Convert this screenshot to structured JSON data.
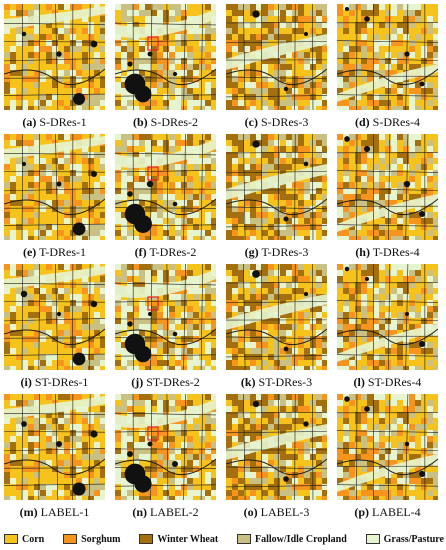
{
  "colors": {
    "corn": "#f6c21c",
    "sorghum": "#f7941d",
    "winter_wheat": "#a4700f",
    "fallow": "#c9c083",
    "grass": "#e6f4cf",
    "urban": "#111111",
    "road": "#1c1c1c",
    "highlight": "#e8202a"
  },
  "panels": [
    {
      "label": "(a)",
      "title": "S-DRes-1",
      "region": 1
    },
    {
      "label": "(b)",
      "title": "S-DRes-2",
      "region": 2
    },
    {
      "label": "(c)",
      "title": "S-DRes-3",
      "region": 3
    },
    {
      "label": "(d)",
      "title": "S-DRes-4",
      "region": 4
    },
    {
      "label": "(e)",
      "title": "T-DRes-1",
      "region": 1
    },
    {
      "label": "(f)",
      "title": "T-DRes-2",
      "region": 2
    },
    {
      "label": "(g)",
      "title": "T-DRes-3",
      "region": 3
    },
    {
      "label": "(h)",
      "title": "T-DRes-4",
      "region": 4
    },
    {
      "label": "(i)",
      "title": "ST-DRes-1",
      "region": 1
    },
    {
      "label": "(j)",
      "title": "ST-DRes-2",
      "region": 2
    },
    {
      "label": "(k)",
      "title": "ST-DRes-3",
      "region": 3
    },
    {
      "label": "(l)",
      "title": "ST-DRes-4",
      "region": 4
    },
    {
      "label": "(m)",
      "title": "LABEL-1",
      "region": 1
    },
    {
      "label": "(n)",
      "title": "LABEL-2",
      "region": 2
    },
    {
      "label": "(o)",
      "title": "LABEL-3",
      "region": 3
    },
    {
      "label": "(p)",
      "title": "LABEL-4",
      "region": 4
    }
  ],
  "legend": [
    {
      "name": "Corn",
      "color": "#f6c21c"
    },
    {
      "name": "Sorghum",
      "color": "#f7941d"
    },
    {
      "name": "Winter Wheat",
      "color": "#a4700f"
    },
    {
      "name": "Fallow/Idle Cropland",
      "color": "#c9c083"
    },
    {
      "name": "Grass/Pasture",
      "color": "#e6f4cf"
    }
  ]
}
